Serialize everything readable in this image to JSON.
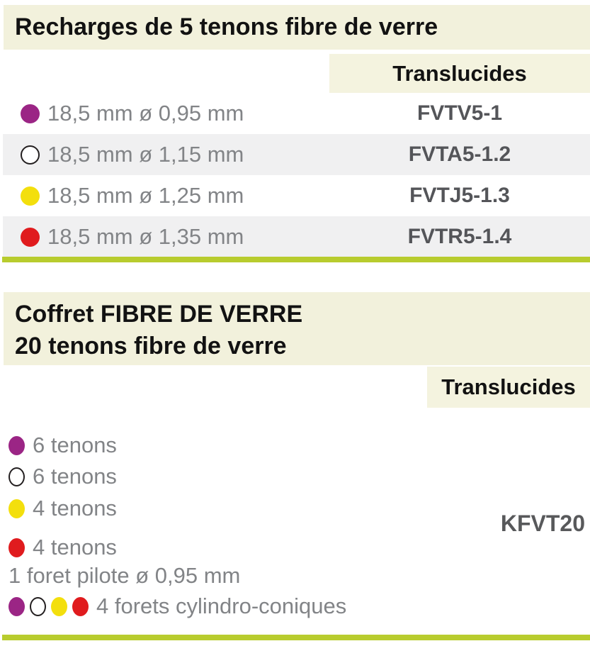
{
  "colors": {
    "purple": "#9b2585",
    "white": "#ffffff",
    "yellow": "#f3df0d",
    "red": "#e01b1e",
    "accent_green": "#b8cc2e",
    "header_cream": "#f2f1dc",
    "row_alt_gray": "#f0f0f1",
    "body_gray_text": "#828487",
    "code_gray_text": "#545559"
  },
  "section1": {
    "title": "Recharges de 5 tenons fibre de verre",
    "column_header": "Translucides",
    "rows": [
      {
        "dot": "purple",
        "size": "18,5 mm ø 0,95 mm",
        "code": "FVTV5-1"
      },
      {
        "dot": "white",
        "size": "18,5 mm ø 1,15 mm",
        "code": "FVTA5-1.2"
      },
      {
        "dot": "yellow",
        "size": "18,5 mm ø 1,25 mm",
        "code": "FVTJ5-1.3"
      },
      {
        "dot": "red",
        "size": "18,5 mm ø 1,35 mm",
        "code": "FVTR5-1.4"
      }
    ]
  },
  "section2": {
    "title_line1": "Coffret FIBRE DE VERRE",
    "title_line2": "20 tenons fibre de verre",
    "column_header": "Translucides",
    "code": "KFVT20",
    "items": [
      {
        "dots": [
          "purple"
        ],
        "label": "6 tenons"
      },
      {
        "dots": [
          "white"
        ],
        "label": "6 tenons"
      },
      {
        "dots": [
          "yellow"
        ],
        "label": "4 tenons"
      },
      {
        "dots": [
          "red"
        ],
        "label": "4 tenons"
      },
      {
        "dots": [],
        "label": "1 foret pilote ø 0,95 mm"
      },
      {
        "dots": [
          "purple",
          "white",
          "yellow",
          "red"
        ],
        "label": "4 forets cylindro-coniques"
      }
    ]
  }
}
